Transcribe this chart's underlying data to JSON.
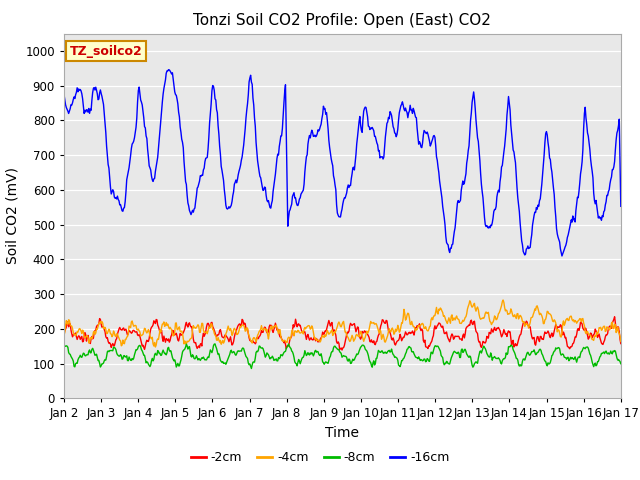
{
  "title": "Tonzi Soil CO2 Profile: Open (East) CO2",
  "ylabel": "Soil CO2 (mV)",
  "xlabel": "Time",
  "ylim": [
    0,
    1050
  ],
  "yticks": [
    0,
    100,
    200,
    300,
    400,
    500,
    600,
    700,
    800,
    900,
    1000
  ],
  "xtick_labels": [
    "Jan 2",
    "Jan 3",
    "Jan 4",
    "Jan 5",
    "Jan 6",
    "Jan 7",
    "Jan 8",
    "Jan 9",
    "Jan 10",
    "Jan 11",
    "Jan 12",
    "Jan 13",
    "Jan 14",
    "Jan 15",
    "Jan 16",
    "Jan 17"
  ],
  "legend_label": "TZ_soilco2",
  "series_labels": [
    "-2cm",
    "-4cm",
    "-8cm",
    "-16cm"
  ],
  "series_colors": [
    "#ff0000",
    "#ffa500",
    "#00bb00",
    "#0000ff"
  ],
  "background_color": "#e8e8e8",
  "title_fontsize": 11,
  "axis_fontsize": 10,
  "tick_fontsize": 8.5,
  "legend_fontsize": 9
}
